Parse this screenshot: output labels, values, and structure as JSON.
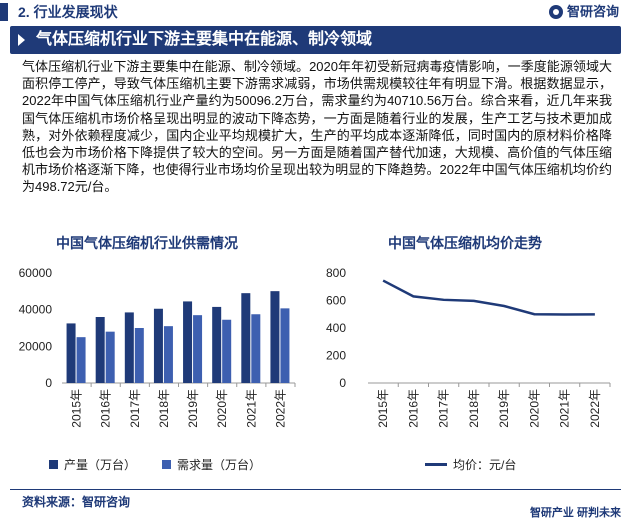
{
  "header": {
    "section_title": "2. 行业发展现状",
    "brand": "智研咨询"
  },
  "heading": {
    "text": "气体压缩机行业下游主要集中在能源、制冷领域"
  },
  "body": {
    "paragraph": "气体压缩机行业下游主要集中在能源、制冷领域。2020年年初受新冠病毒疫情影响，一季度能源领域大面积停工停产，导致气体压缩机主要下游需求减弱，市场供需规模较往年有明显下滑。根据数据显示，2022年中国气体压缩机行业产量约为50096.2万台，需求量约为40710.56万台。综合来看，近几年来我国气体压缩机市场价格呈现出明显的波动下降态势，一方面是随着行业的发展，生产工艺与技术更加成熟，对外依赖程度减少，国内企业平均规模扩大，生产的平均成本逐渐降低，同时国内的原材料价格降低也会为市场价格下降提供了较大的空间。另一方面是随着国产替代加速，大规模、高价值的气体压缩机市场价格逐渐下降，也使得行业市场均价呈现出较为明显的下降趋势。2022年中国气体压缩机均价约为498.72元/台。"
  },
  "colors": {
    "accent": "#1f3a78",
    "production": "#1f3a78",
    "demand": "#3d5fb0"
  },
  "chart_data": [
    {
      "type": "bar",
      "title": "中国气体压缩机行业供需情况",
      "categories": [
        "2015年",
        "2016年",
        "2017年",
        "2018年",
        "2019年",
        "2020年",
        "2021年",
        "2022年"
      ],
      "series": [
        {
          "name": "产量（万台）",
          "values": [
            32500,
            36000,
            38500,
            40500,
            44500,
            41500,
            49000,
            50096.2
          ]
        },
        {
          "name": "需求量（万台）",
          "values": [
            25000,
            28000,
            30000,
            31000,
            37000,
            34500,
            37500,
            40710.56
          ]
        }
      ],
      "yticks": [
        "0",
        "20000",
        "40000",
        "60000"
      ],
      "ylim": [
        0,
        60000
      ],
      "legend": "bottom"
    },
    {
      "type": "line",
      "title": "中国气体压缩机均价走势",
      "categories": [
        "2015年",
        "2016年",
        "2017年",
        "2018年",
        "2019年",
        "2020年",
        "2021年",
        "2022年"
      ],
      "series": [
        {
          "name": "均价：元/台",
          "values": [
            745,
            630,
            605,
            597,
            560,
            500,
            498,
            498.72
          ]
        }
      ],
      "yticks": [
        "0",
        "200",
        "400",
        "600",
        "800"
      ],
      "ylim": [
        0,
        800
      ],
      "legend": "bottom"
    }
  ],
  "footer": {
    "source": "资料来源：智研咨询",
    "brand_line": "智研产业 研判未来"
  }
}
